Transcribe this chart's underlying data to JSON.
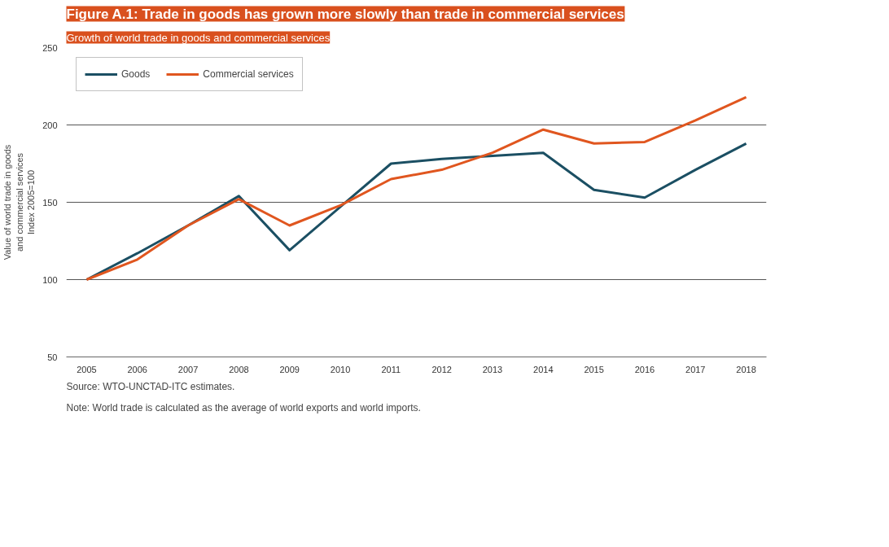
{
  "chart_data": {
    "type": "line",
    "title": "Figure A.1: Trade in goods has grown more slowly than trade in commercial services",
    "subtitle": "Growth of world trade in goods and commercial services",
    "ylabel": "Value of world trade in goods\nand commercial services\nIndex 2005=100",
    "categories": [
      "2005",
      "2006",
      "2007",
      "2008",
      "2009",
      "2010",
      "2011",
      "2012",
      "2013",
      "2014",
      "2015",
      "2016",
      "2017",
      "2018"
    ],
    "series": [
      {
        "name": "Goods",
        "color": "#1b4f63",
        "values": [
          100,
          117,
          135,
          154,
          119,
          147,
          175,
          178,
          180,
          182,
          158,
          153,
          171,
          188
        ]
      },
      {
        "name": "Commercial services",
        "color": "#e0561f",
        "values": [
          100,
          113,
          135,
          152,
          135,
          148,
          165,
          171,
          182,
          197,
          188,
          189,
          203,
          218
        ]
      }
    ],
    "ylim": [
      50,
      250
    ],
    "yticks": [
      50,
      100,
      150,
      200,
      250
    ],
    "grid": "y",
    "legend": "top left",
    "marker": "none",
    "line_style": "solid",
    "annotations": [
      "Source: WTO-UNCTAD-ITC estimates.",
      "Note: World trade is calculated as the average of world exports and world imports."
    ]
  }
}
